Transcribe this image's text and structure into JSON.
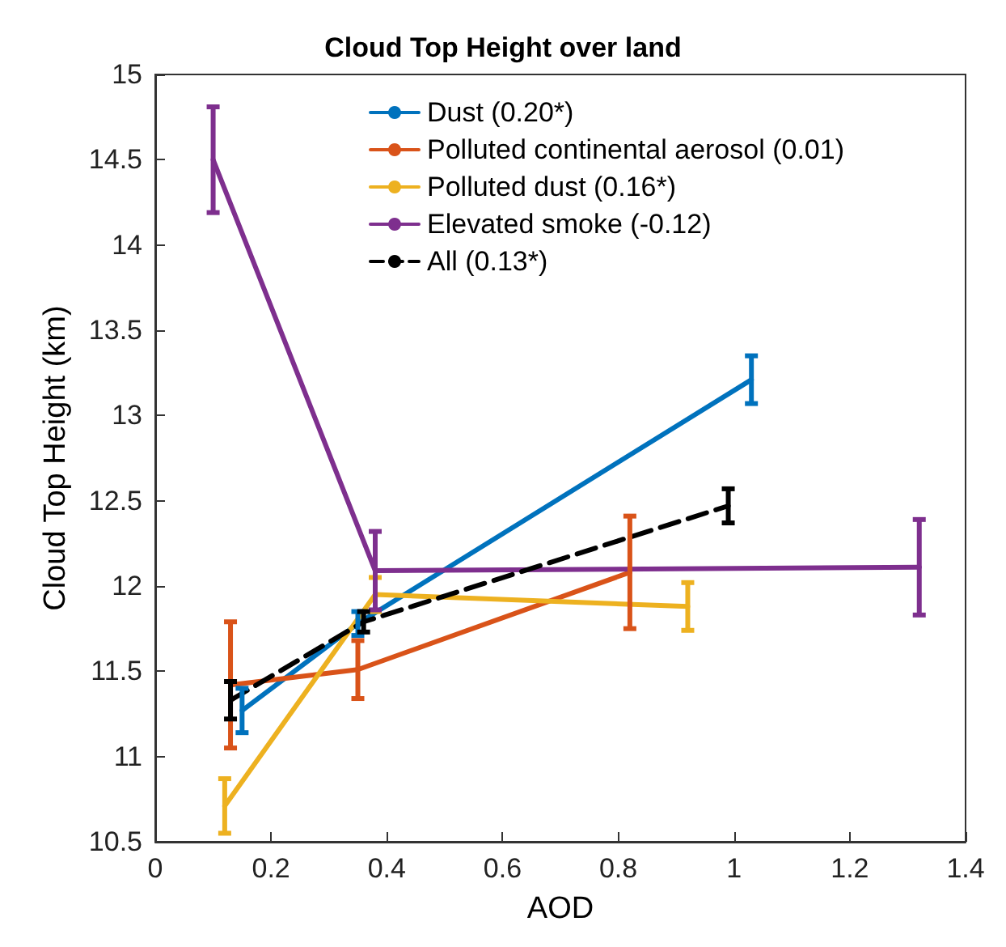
{
  "chart_data": {
    "type": "line",
    "title": "Cloud Top Height over land",
    "xlabel": "AOD",
    "ylabel": "Cloud Top Height (km)",
    "xlim": [
      0,
      1.4
    ],
    "xticks": [
      0,
      0.2,
      0.4,
      0.6,
      0.8,
      1,
      1.2,
      1.4
    ],
    "ylim": [
      10.5,
      15
    ],
    "yticks": [
      10.5,
      11,
      11.5,
      12,
      12.5,
      13,
      13.5,
      14,
      14.5,
      15
    ],
    "grid": false,
    "legend": "top",
    "marker": "none",
    "series": [
      {
        "name": "Dust (0.20*)",
        "color": "#0072bd",
        "x": [
          0.15,
          0.35,
          1.03
        ],
        "values": [
          11.27,
          11.78,
          13.21
        ],
        "errors": [
          0.13,
          0.07,
          0.14
        ]
      },
      {
        "name": "Polluted continental aerosol (0.01)",
        "color": "#d95319",
        "x": [
          0.13,
          0.35,
          0.82
        ],
        "values": [
          11.42,
          11.51,
          12.08
        ],
        "errors": [
          0.37,
          0.17,
          0.33
        ]
      },
      {
        "name": "Polluted dust (0.16*)",
        "color": "#edb120",
        "x": [
          0.12,
          0.38,
          0.92
        ],
        "values": [
          10.71,
          11.95,
          11.88
        ],
        "errors": [
          0.16,
          0.1,
          0.14
        ]
      },
      {
        "name": "Elevated smoke (-0.12)",
        "color": "#7e2f8e",
        "x": [
          0.1,
          0.38,
          1.32
        ],
        "values": [
          14.5,
          12.09,
          12.11
        ],
        "errors": [
          0.31,
          0.23,
          0.28
        ]
      },
      {
        "name": "All (0.13*)",
        "color": "#000000",
        "line_style": "dashed",
        "x": [
          0.13,
          0.36,
          0.99
        ],
        "values": [
          11.33,
          11.79,
          12.47
        ],
        "errors": [
          0.11,
          0.06,
          0.1
        ]
      }
    ]
  }
}
